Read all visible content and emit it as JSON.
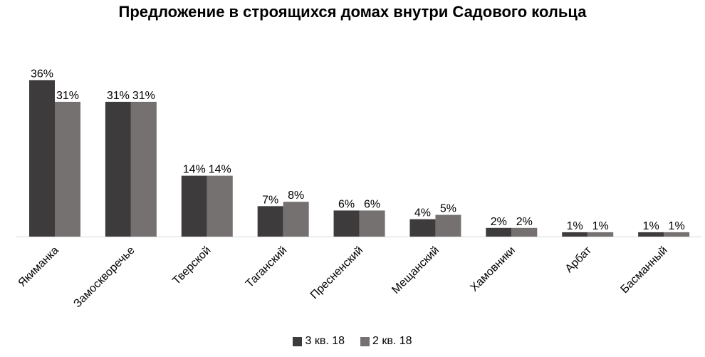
{
  "chart_data": {
    "type": "bar",
    "title": "Предложение в строящихся домах внутри Садового кольца",
    "categories": [
      "Якиманка",
      "Замоскворечье",
      "Тверской",
      "Таганский",
      "Пресненский",
      "Мещанский",
      "Хамовники",
      "Арбат",
      "Басманный"
    ],
    "series": [
      {
        "name": "3 кв. 18",
        "color": "#3d3b3c",
        "values": [
          36,
          31,
          14,
          7,
          6,
          4,
          2,
          1,
          1
        ],
        "labels": [
          "36%",
          "31%",
          "14%",
          "7%",
          "6%",
          "4%",
          "2%",
          "1%",
          "1%"
        ]
      },
      {
        "name": "2 кв. 18",
        "color": "#767171",
        "values": [
          31,
          31,
          14,
          8,
          6,
          5,
          2,
          1,
          1
        ],
        "labels": [
          "31%",
          "31%",
          "14%",
          "8%",
          "6%",
          "5%",
          "2%",
          "1%",
          "1%"
        ]
      }
    ],
    "ylim": [
      0,
      40
    ],
    "grid": false,
    "legend_position": "bottom",
    "xlabel": "",
    "ylabel": ""
  }
}
